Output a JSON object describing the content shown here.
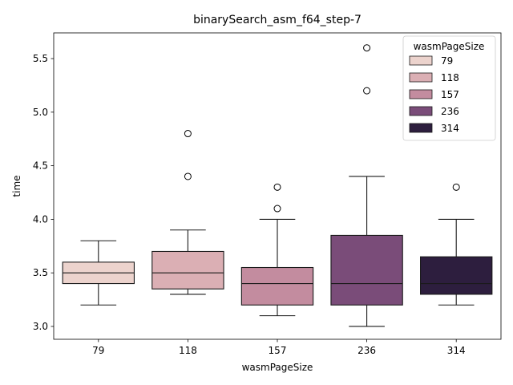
{
  "chart_data": {
    "type": "box",
    "title": "binarySearch_asm_f64_step-7",
    "xlabel": "wasmPageSize",
    "ylabel": "time",
    "ylim": [
      2.88,
      5.74
    ],
    "yticks": [
      "3.0",
      "3.5",
      "4.0",
      "4.5",
      "5.0",
      "5.5"
    ],
    "ytick_values": [
      3.0,
      3.5,
      4.0,
      4.5,
      5.0,
      5.5
    ],
    "categories": [
      "79",
      "118",
      "157",
      "236",
      "314"
    ],
    "grid": false,
    "legend": {
      "title": "wasmPageSize",
      "placement": "top-right",
      "entries": [
        "79",
        "118",
        "157",
        "236",
        "314"
      ]
    },
    "colors": [
      "#ecd3cd",
      "#dbafb4",
      "#c38c9f",
      "#7a4c79",
      "#2d1e3e"
    ],
    "boxes": [
      {
        "category": "79",
        "whisker_low": 3.2,
        "q1": 3.4,
        "median": 3.5,
        "q3": 3.6,
        "whisker_high": 3.8,
        "outliers": []
      },
      {
        "category": "118",
        "whisker_low": 3.3,
        "q1": 3.35,
        "median": 3.5,
        "q3": 3.7,
        "whisker_high": 3.9,
        "outliers": [
          4.4,
          4.8
        ]
      },
      {
        "category": "157",
        "whisker_low": 3.1,
        "q1": 3.2,
        "median": 3.4,
        "q3": 3.55,
        "whisker_high": 4.0,
        "outliers": [
          4.1,
          4.3
        ]
      },
      {
        "category": "236",
        "whisker_low": 3.0,
        "q1": 3.2,
        "median": 3.4,
        "q3": 3.85,
        "whisker_high": 4.4,
        "outliers": [
          5.2,
          5.6
        ]
      },
      {
        "category": "314",
        "whisker_low": 3.2,
        "q1": 3.3,
        "median": 3.4,
        "q3": 3.65,
        "whisker_high": 4.0,
        "outliers": [
          4.3
        ]
      }
    ]
  }
}
